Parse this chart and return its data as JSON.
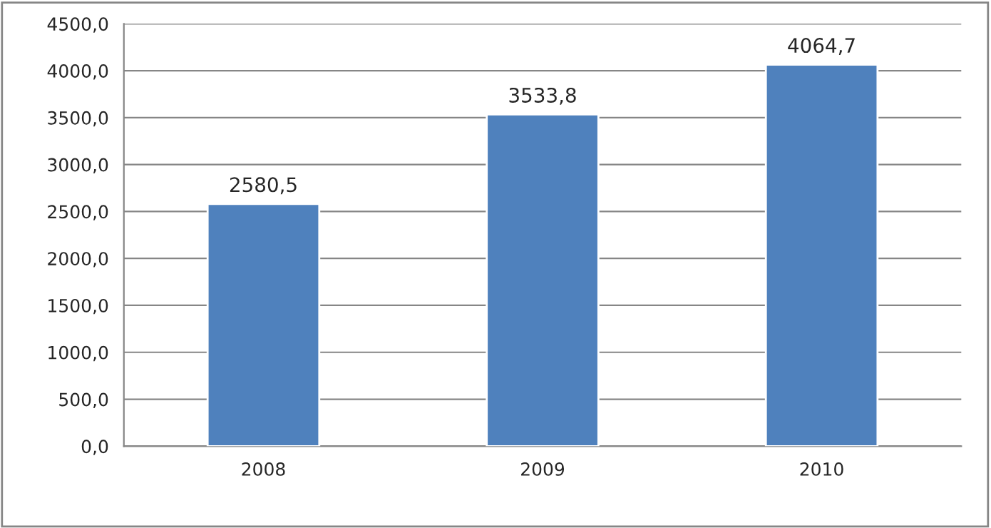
{
  "chart_data": {
    "type": "bar",
    "categories": [
      "2008",
      "2009",
      "2010"
    ],
    "values": [
      2580.5,
      3533.8,
      4064.7
    ],
    "value_labels": [
      "2580,5",
      "3533,8",
      "4064,7"
    ],
    "color": "#4f81bd",
    "ylim": [
      0,
      4500
    ],
    "yticks": [
      {
        "value": 0,
        "label": "0,0"
      },
      {
        "value": 500,
        "label": "500,0"
      },
      {
        "value": 1000,
        "label": "1000,0"
      },
      {
        "value": 1500,
        "label": "1500,0"
      },
      {
        "value": 2000,
        "label": "2000,0"
      },
      {
        "value": 2500,
        "label": "2500,0"
      },
      {
        "value": 3000,
        "label": "3000,0"
      },
      {
        "value": 3500,
        "label": "3500,0"
      },
      {
        "value": 4000,
        "label": "4000,0"
      },
      {
        "value": 4500,
        "label": "4500,0"
      }
    ],
    "grid": "y",
    "legend": false
  }
}
